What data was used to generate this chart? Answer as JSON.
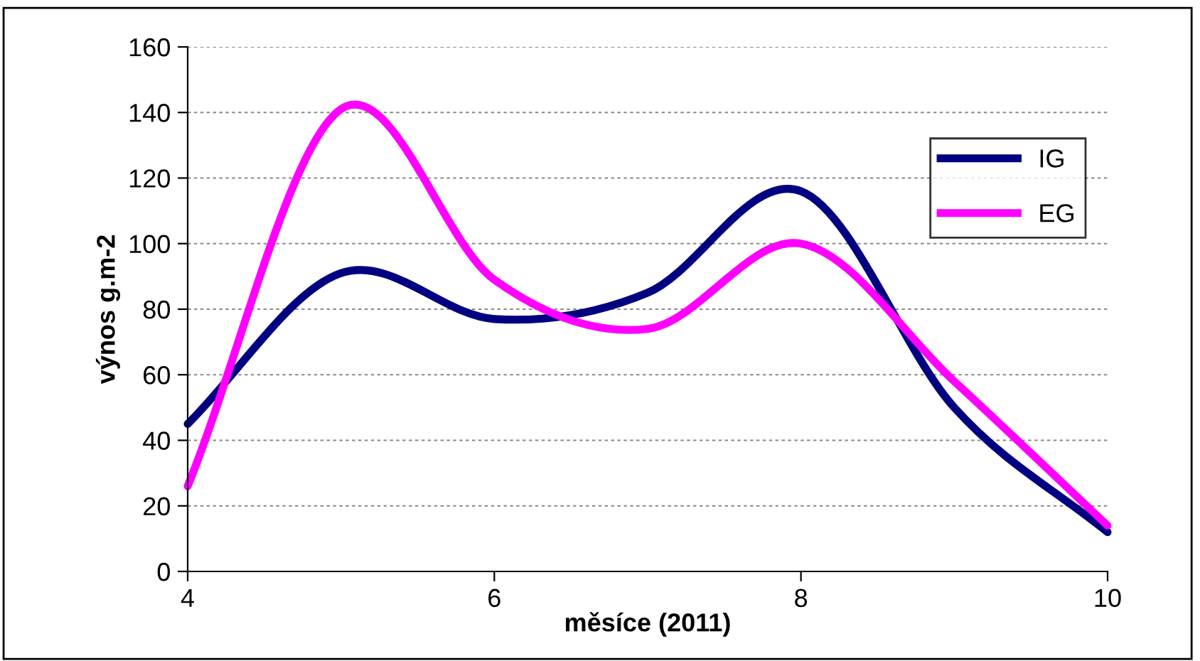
{
  "chart_data": {
    "type": "line",
    "xlabel": "měsíce (2011)",
    "ylabel": "výnos g.m-2",
    "x": [
      4,
      5,
      6,
      7,
      8,
      9,
      10
    ],
    "series": [
      {
        "name": "IG",
        "color": "#000080",
        "values": [
          45,
          91,
          77,
          85,
          116,
          50,
          12
        ]
      },
      {
        "name": "EG",
        "color": "#ff00ff",
        "values": [
          26,
          141,
          89,
          74,
          100,
          58,
          14
        ]
      }
    ],
    "xlim": [
      4,
      10
    ],
    "xticks": [
      4,
      6,
      8,
      10
    ],
    "ylim": [
      0,
      160
    ],
    "yticks": [
      0,
      20,
      40,
      60,
      80,
      100,
      120,
      140,
      160
    ],
    "grid": "y",
    "legend": "top right",
    "marker": "none",
    "line_style": "solid"
  }
}
